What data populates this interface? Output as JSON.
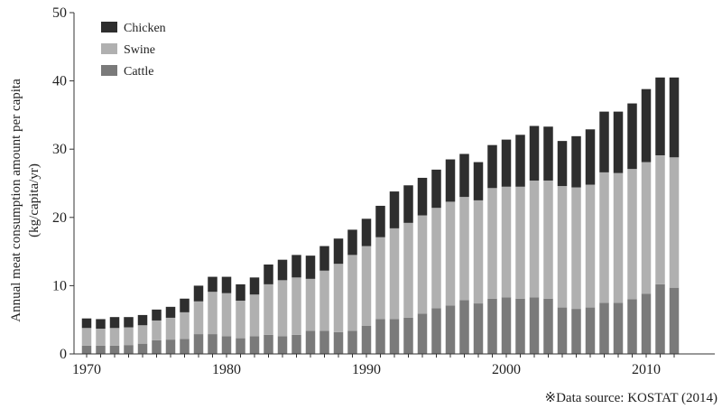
{
  "chart_data": {
    "type": "bar",
    "stacked": true,
    "ylabel_line1": "Annual meat consumption amount per capita",
    "ylabel_line2": "(kg/capita/yr)",
    "source": "※Data source: KOSTAT (2014)",
    "ylim": [
      0,
      50
    ],
    "yticks": [
      "0",
      "10",
      "20",
      "30",
      "40",
      "50"
    ],
    "xticks": [
      "1970",
      "1980",
      "1990",
      "2000",
      "2010"
    ],
    "legend_position": "top-left",
    "x": [
      1970,
      1971,
      1972,
      1973,
      1974,
      1975,
      1976,
      1977,
      1978,
      1979,
      1980,
      1981,
      1982,
      1983,
      1984,
      1985,
      1986,
      1987,
      1988,
      1989,
      1990,
      1991,
      1992,
      1993,
      1994,
      1995,
      1996,
      1997,
      1998,
      1999,
      2000,
      2001,
      2002,
      2003,
      2004,
      2005,
      2006,
      2007,
      2008,
      2009,
      2010,
      2011,
      2012
    ],
    "series": [
      {
        "name": "Cattle",
        "color": "#7a7a7a",
        "values": [
          1.2,
          1.2,
          1.2,
          1.3,
          1.5,
          2.0,
          2.1,
          2.2,
          2.9,
          2.9,
          2.6,
          2.3,
          2.6,
          2.8,
          2.6,
          2.8,
          3.4,
          3.4,
          3.2,
          3.4,
          4.1,
          5.1,
          5.1,
          5.3,
          5.9,
          6.7,
          7.1,
          7.9,
          7.4,
          8.1,
          8.3,
          8.1,
          8.3,
          8.1,
          6.8,
          6.6,
          6.8,
          7.5,
          7.5,
          8.0,
          8.8,
          10.2,
          9.7
        ]
      },
      {
        "name": "Swine",
        "color": "#b0b0b0",
        "values": [
          2.6,
          2.5,
          2.6,
          2.6,
          2.7,
          2.9,
          3.2,
          3.9,
          4.8,
          6.2,
          6.3,
          5.5,
          6.1,
          7.4,
          8.2,
          8.4,
          7.6,
          8.8,
          10.0,
          11.1,
          11.7,
          12.0,
          13.3,
          13.9,
          14.4,
          14.7,
          15.2,
          15.1,
          15.1,
          16.2,
          16.2,
          16.4,
          17.1,
          17.3,
          17.8,
          17.8,
          18.0,
          19.1,
          19.0,
          19.1,
          19.3,
          18.9,
          19.1
        ]
      },
      {
        "name": "Chicken",
        "color": "#2e2e2e",
        "values": [
          1.4,
          1.4,
          1.6,
          1.5,
          1.5,
          1.6,
          1.6,
          2.0,
          2.3,
          2.2,
          2.4,
          2.4,
          2.5,
          2.9,
          3.0,
          3.3,
          3.4,
          3.6,
          3.7,
          3.7,
          4.0,
          4.6,
          5.4,
          5.5,
          5.5,
          5.6,
          6.2,
          6.3,
          5.6,
          6.3,
          6.9,
          7.6,
          8.0,
          7.9,
          6.6,
          7.5,
          8.1,
          8.9,
          9.0,
          9.6,
          10.7,
          11.4,
          11.7
        ]
      }
    ]
  }
}
